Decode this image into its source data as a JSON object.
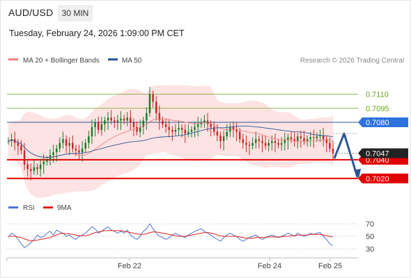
{
  "header": {
    "symbol": "AUD/USD",
    "timeframe": "30 MIN",
    "datetime": "Tuesday, February 24, 2026 1:09:00 PM CET"
  },
  "legend": {
    "ma20_label": "MA 20 + Bollinger Bands",
    "ma50_label": "MA 50",
    "copyright": "Research © 2026 Trading Central",
    "ma20_color": "#f08080",
    "ma50_color": "#2a5596"
  },
  "indicator_legend": {
    "rsi_label": "RSI",
    "ma9_label": "9MA",
    "rsi_color": "#4a74d0",
    "ma9_color": "#e02020"
  },
  "colors": {
    "up_candle": "#1c7a2a",
    "down_candle": "#c62828",
    "bollinger_fill": "#fde0e0",
    "resistance_green": "#6aa51a",
    "pivot_blue": "#2a5596",
    "support_red": "#e10000",
    "badge_blue": "#2e73dd",
    "badge_red": "#e10000",
    "last_price_badge": "#222222"
  },
  "chart_data": {
    "type": "candlestick",
    "x_ticks": [
      "Feb 22",
      "Feb 24",
      "Feb 25"
    ],
    "price_ylim": [
      0.7005,
      0.7135
    ],
    "levels": [
      {
        "value": 0.711,
        "label": "0.7110",
        "kind": "resistance"
      },
      {
        "value": 0.7095,
        "label": "0.7095",
        "kind": "resistance"
      },
      {
        "value": 0.708,
        "label": "0.7080",
        "kind": "pivot"
      },
      {
        "value": 0.704,
        "label": "0.7040",
        "kind": "support"
      },
      {
        "value": 0.702,
        "label": "0.7020",
        "kind": "support"
      }
    ],
    "last_price": {
      "value": 0.7047,
      "label": "0.7047"
    },
    "projection": [
      0.704,
      0.7068,
      0.702
    ],
    "closes": [
      0.706,
      0.7062,
      0.7058,
      0.7055,
      0.705,
      0.7035,
      0.703,
      0.7028,
      0.7032,
      0.703,
      0.7035,
      0.7038,
      0.704,
      0.7045,
      0.7048,
      0.7052,
      0.7058,
      0.7062,
      0.7055,
      0.7058,
      0.7052,
      0.705,
      0.7048,
      0.7052,
      0.7058,
      0.7065,
      0.7075,
      0.708,
      0.7072,
      0.7078,
      0.7082,
      0.7085,
      0.7082,
      0.708,
      0.7082,
      0.7084,
      0.7082,
      0.7085,
      0.708,
      0.7075,
      0.707,
      0.7075,
      0.7082,
      0.709,
      0.711,
      0.7102,
      0.709,
      0.7082,
      0.7078,
      0.7075,
      0.7072,
      0.707,
      0.7072,
      0.7074,
      0.7072,
      0.7068,
      0.707,
      0.7072,
      0.7075,
      0.7078,
      0.708,
      0.7082,
      0.7078,
      0.7075,
      0.707,
      0.7066,
      0.706,
      0.7065,
      0.707,
      0.7075,
      0.7072,
      0.707,
      0.7062,
      0.7058,
      0.7056,
      0.7055,
      0.7058,
      0.7062,
      0.706,
      0.7058,
      0.7055,
      0.7058,
      0.706,
      0.7058,
      0.7056,
      0.7058,
      0.7061,
      0.7064,
      0.7062,
      0.706,
      0.7065,
      0.7063,
      0.706,
      0.7062,
      0.7064,
      0.7063,
      0.7065,
      0.7066,
      0.7062,
      0.7058,
      0.7052,
      0.7047
    ],
    "rsi_ticks": [
      "70",
      "50",
      "30"
    ],
    "rsi_ylim": [
      20,
      80
    ],
    "rsi": [
      48,
      55,
      52,
      45,
      38,
      32,
      35,
      40,
      45,
      52,
      48,
      50,
      55,
      58,
      52,
      60,
      57,
      55,
      50,
      52,
      48,
      45,
      50,
      52,
      55,
      60,
      65,
      62,
      55,
      58,
      62,
      65,
      60,
      58,
      55,
      58,
      55,
      60,
      52,
      48,
      45,
      50,
      58,
      62,
      70,
      62,
      55,
      50,
      48,
      45,
      48,
      52,
      55,
      52,
      50,
      48,
      52,
      55,
      58,
      60,
      62,
      58,
      55,
      52,
      48,
      45,
      42,
      48,
      52,
      55,
      52,
      50,
      45,
      42,
      45,
      48,
      50,
      52,
      48,
      45,
      48,
      50,
      52,
      50,
      48,
      50,
      52,
      55,
      53,
      50,
      55,
      52,
      50,
      52,
      55,
      53,
      55,
      56,
      50,
      45,
      38,
      35
    ],
    "rsi_ma9": [
      50,
      50,
      50,
      49,
      48,
      46,
      44,
      43,
      43,
      44,
      45,
      46,
      47,
      48,
      50,
      52,
      54,
      55,
      54,
      54,
      53,
      52,
      51,
      51,
      51,
      52,
      54,
      56,
      57,
      58,
      59,
      59,
      59,
      59,
      59,
      59,
      58,
      57,
      56,
      55,
      54,
      53,
      53,
      54,
      56,
      57,
      57,
      56,
      55,
      54,
      53,
      52,
      51,
      50,
      50,
      50,
      51,
      52,
      53,
      54,
      55,
      56,
      56,
      55,
      54,
      52,
      51,
      50,
      50,
      50,
      50,
      50,
      49,
      48,
      47,
      47,
      47,
      48,
      48,
      48,
      48,
      49,
      49,
      49,
      49,
      49,
      50,
      50,
      51,
      51,
      52,
      52,
      52,
      52,
      53,
      53,
      53,
      53,
      52,
      51,
      50,
      49
    ]
  }
}
